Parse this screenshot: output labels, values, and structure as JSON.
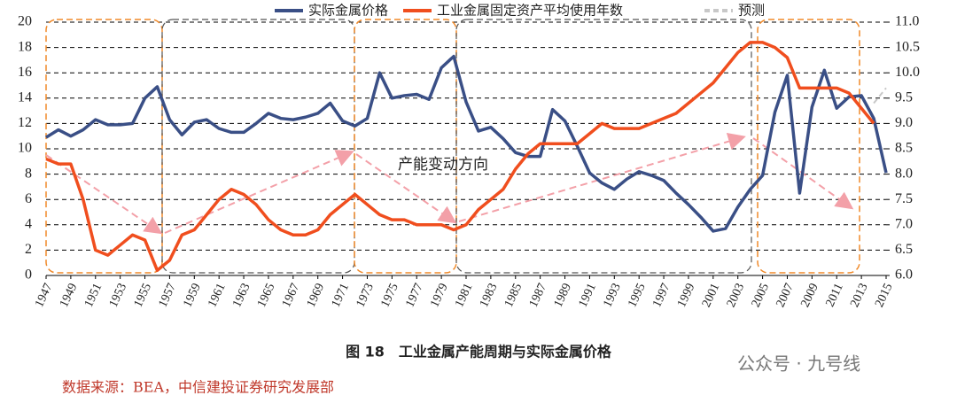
{
  "chart_data": {
    "type": "line",
    "title": "图 18　工业金属产能周期与实际金属价格",
    "source": "数据来源：BEA，中信建投证券研究发展部",
    "watermark": "公众号 · 九号线",
    "annotation": "产能变动方向",
    "x": [
      1947,
      1948,
      1949,
      1950,
      1951,
      1952,
      1953,
      1954,
      1955,
      1956,
      1957,
      1958,
      1959,
      1960,
      1961,
      1962,
      1963,
      1964,
      1965,
      1966,
      1967,
      1968,
      1969,
      1970,
      1971,
      1972,
      1973,
      1974,
      1975,
      1976,
      1977,
      1978,
      1979,
      1980,
      1981,
      1982,
      1983,
      1984,
      1985,
      1986,
      1987,
      1988,
      1989,
      1990,
      1991,
      1992,
      1993,
      1994,
      1995,
      1996,
      1997,
      1998,
      1999,
      2000,
      2001,
      2002,
      2003,
      2004,
      2005,
      2006,
      2007,
      2008,
      2009,
      2010,
      2011,
      2012,
      2013,
      2014,
      2015
    ],
    "xlim": [
      1947,
      2015
    ],
    "xticks": [
      1947,
      1949,
      1951,
      1953,
      1955,
      1957,
      1959,
      1961,
      1963,
      1965,
      1967,
      1969,
      1971,
      1973,
      1975,
      1977,
      1979,
      1981,
      1983,
      1985,
      1987,
      1989,
      1991,
      1993,
      1995,
      1997,
      1999,
      2001,
      2003,
      2005,
      2007,
      2009,
      2011,
      2013,
      2015
    ],
    "ylim": [
      0,
      20
    ],
    "yticks": [
      0,
      2,
      4,
      6,
      8,
      10,
      12,
      14,
      16,
      18,
      20
    ],
    "y2lim": [
      6,
      11
    ],
    "y2ticks": [
      {
        "value": 6,
        "label": "6.0"
      },
      {
        "value": 6.5,
        "label": "6.5"
      },
      {
        "value": 7,
        "label": "7.0"
      },
      {
        "value": 7.5,
        "label": "7.5"
      },
      {
        "value": 8,
        "label": "8.0"
      },
      {
        "value": 8.5,
        "label": "8.5"
      },
      {
        "value": 9,
        "label": "9.0"
      },
      {
        "value": 9.5,
        "label": "9.5"
      },
      {
        "value": 10,
        "label": "10.0"
      },
      {
        "value": 10.5,
        "label": "10.5"
      },
      {
        "value": 11,
        "label": "11.0"
      }
    ],
    "grid": true,
    "series": [
      {
        "name": "实际金属价格",
        "color": "#3a4f86",
        "values": [
          10.9,
          11.5,
          11.0,
          11.5,
          12.3,
          11.9,
          11.9,
          12.0,
          14.0,
          14.9,
          12.3,
          11.1,
          12.1,
          12.3,
          11.6,
          11.3,
          11.3,
          12.0,
          12.8,
          12.4,
          12.3,
          12.5,
          12.8,
          13.6,
          12.2,
          11.8,
          12.4,
          16.0,
          14.0,
          14.2,
          14.3,
          13.9,
          16.4,
          17.3,
          13.7,
          11.4,
          11.7,
          10.8,
          9.7,
          9.4,
          9.4,
          13.1,
          12.2,
          10.2,
          8.1,
          7.3,
          6.8,
          7.6,
          8.2,
          7.9,
          7.5,
          6.5,
          5.6,
          4.6,
          3.5,
          3.7,
          5.4,
          6.8,
          7.9,
          12.9,
          15.8,
          6.5,
          13.3,
          16.2,
          13.2,
          14.1,
          14.2,
          12.4,
          8.1
        ]
      },
      {
        "name": "工业金属固定资产平均使用年数",
        "color": "#f04e1e",
        "axis": "y2",
        "values": [
          8.3,
          8.2,
          8.2,
          7.5,
          6.5,
          6.4,
          6.6,
          6.8,
          6.7,
          6.1,
          6.3,
          6.8,
          6.9,
          7.2,
          7.5,
          7.7,
          7.6,
          7.4,
          7.1,
          6.9,
          6.8,
          6.8,
          6.9,
          7.2,
          7.4,
          7.6,
          7.4,
          7.2,
          7.1,
          7.1,
          7.0,
          7.0,
          7.0,
          6.9,
          7.0,
          7.3,
          7.5,
          7.7,
          8.1,
          8.4,
          8.6,
          8.6,
          8.6,
          8.6,
          8.8,
          9.0,
          8.9,
          8.9,
          8.9,
          9.0,
          9.1,
          9.2,
          9.4,
          9.6,
          9.8,
          10.1,
          10.4,
          10.6,
          10.6,
          10.5,
          10.3,
          9.7,
          9.7,
          9.7,
          9.7,
          9.6,
          9.3,
          9.0,
          null
        ]
      },
      {
        "name": "预测",
        "color": "#c8c8c8",
        "axis": "y2",
        "linestyle": "dashed",
        "values": [
          null,
          null,
          null,
          null,
          null,
          null,
          null,
          null,
          null,
          null,
          null,
          null,
          null,
          null,
          null,
          null,
          null,
          null,
          null,
          null,
          null,
          null,
          null,
          null,
          null,
          null,
          null,
          null,
          null,
          null,
          null,
          null,
          null,
          null,
          null,
          null,
          null,
          null,
          null,
          null,
          null,
          null,
          null,
          null,
          null,
          null,
          null,
          null,
          null,
          null,
          null,
          null,
          null,
          null,
          null,
          null,
          null,
          null,
          null,
          null,
          null,
          null,
          null,
          null,
          null,
          null,
          null,
          9.4,
          9.7
        ]
      }
    ]
  }
}
